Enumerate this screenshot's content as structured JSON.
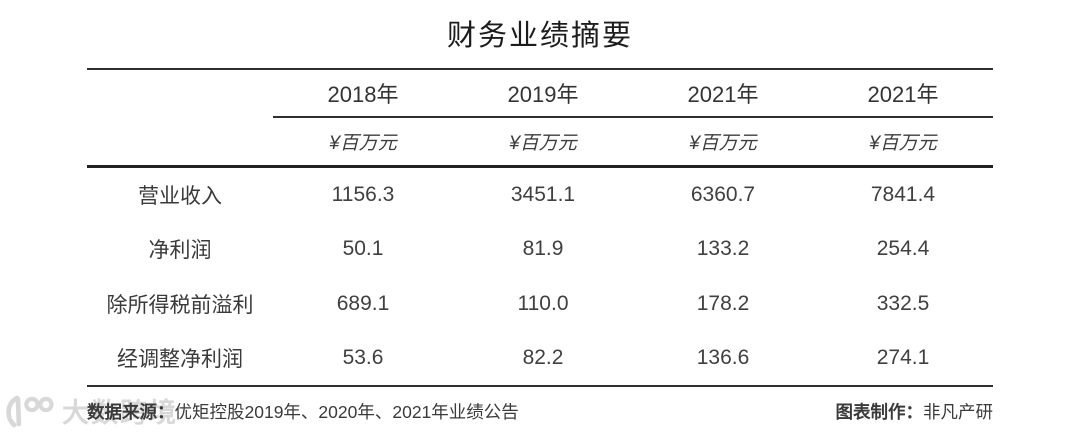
{
  "title": "财务业绩摘要",
  "chart_data": {
    "type": "table",
    "title": "财务业绩摘要",
    "columns": [
      "2018年",
      "2019年",
      "2021年",
      "2021年"
    ],
    "unit_per_column": "¥百万元",
    "rows": [
      {
        "label": "营业收入",
        "values": [
          "1156.3",
          "3451.1",
          "6360.7",
          "7841.4"
        ]
      },
      {
        "label": "净利润",
        "values": [
          "50.1",
          "81.9",
          "133.2",
          "254.4"
        ]
      },
      {
        "label": "除所得税前溢利",
        "values": [
          "689.1",
          "110.0",
          "178.2",
          "332.5"
        ]
      },
      {
        "label": "经调整净利润",
        "values": [
          "53.6",
          "82.2",
          "136.6",
          "274.1"
        ]
      }
    ],
    "layout": {
      "grid": false,
      "header_rule": true,
      "unit_row_italic": true
    }
  },
  "footer": {
    "source_label": "数据来源：",
    "source_text": "优矩控股2019年、2020年、2021年业绩公告",
    "credit_label": "图表制作：",
    "credit_text": "非凡产研"
  },
  "watermark": {
    "logo_icon": "dashukuajing-logo-icon",
    "text": "大数跨境"
  },
  "colors": {
    "background": "#ffffff",
    "title": "#1c1c1c",
    "text": "#3a3a3a",
    "rule": "#2f2f2f",
    "watermark": "#d8d8d8"
  }
}
